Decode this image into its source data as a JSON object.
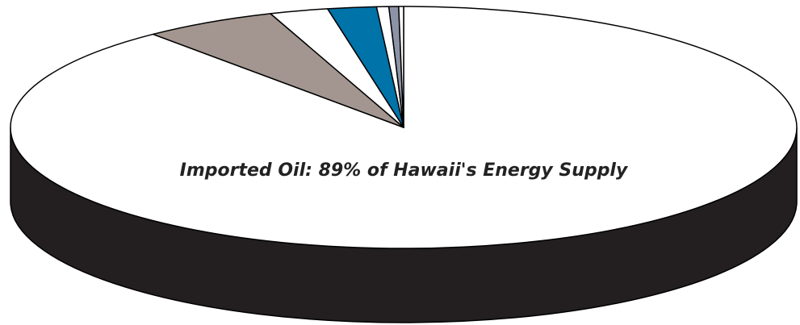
{
  "chart_data": {
    "type": "pie3d",
    "annotation": "Imported Oil:  89% of Hawaii's Energy Supply",
    "categories": [
      null,
      null,
      null,
      null,
      null,
      null,
      null
    ],
    "values": [
      89,
      5.5,
      2.4,
      2,
      0.5,
      0.4,
      0.2
    ],
    "colors": [
      "#ffffff",
      "#a39690",
      "#ffffff",
      "#0073a8",
      "#ffffff",
      "#8d93a6",
      "#ffffff"
    ],
    "side_color": "#231f20"
  }
}
